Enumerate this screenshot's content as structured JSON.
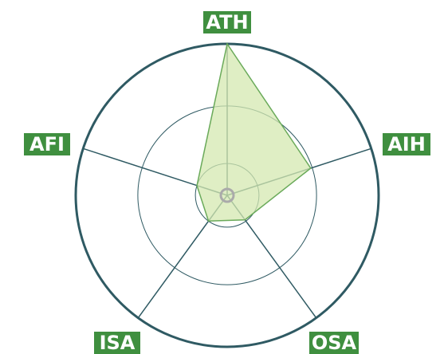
{
  "chart_data": {
    "type": "radar",
    "categories": [
      "ATH",
      "AIH",
      "OSA",
      "ISA",
      "AFI"
    ],
    "values": [
      100,
      58,
      20,
      21,
      21
    ],
    "color": "#6aaa5a",
    "fill": "#d4e8b0",
    "ylim": [
      0,
      100
    ],
    "yticks": [
      21,
      59,
      100
    ],
    "grid": true
  }
}
